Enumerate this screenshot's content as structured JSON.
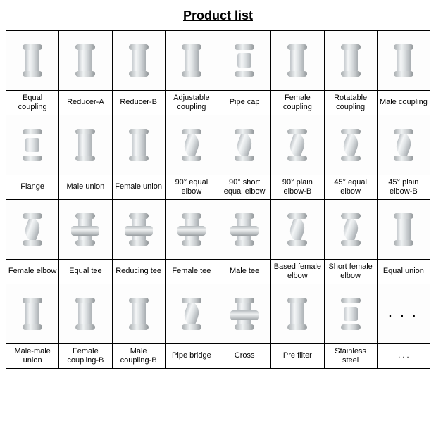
{
  "title": "Product list",
  "columns": 8,
  "rows": [
    [
      {
        "label": "Equal coupling",
        "shape": "coupling"
      },
      {
        "label": "Reducer-A",
        "shape": "coupling"
      },
      {
        "label": "Reducer-B",
        "shape": "coupling"
      },
      {
        "label": "Adjustable coupling",
        "shape": "coupling"
      },
      {
        "label": "Pipe cap",
        "shape": "flat"
      },
      {
        "label": "Female coupling",
        "shape": "coupling"
      },
      {
        "label": "Rotatable coupling",
        "shape": "coupling"
      },
      {
        "label": "Male coupling",
        "shape": "coupling"
      }
    ],
    [
      {
        "label": "Flange",
        "shape": "flat"
      },
      {
        "label": "Male union",
        "shape": "coupling"
      },
      {
        "label": "Female union",
        "shape": "coupling"
      },
      {
        "label": "90° equal elbow",
        "shape": "elbow"
      },
      {
        "label": "90° short equal elbow",
        "shape": "elbow"
      },
      {
        "label": "90° plain elbow-B",
        "shape": "elbow"
      },
      {
        "label": "45° equal elbow",
        "shape": "elbow"
      },
      {
        "label": "45° plain elbow-B",
        "shape": "elbow"
      }
    ],
    [
      {
        "label": "Female elbow",
        "shape": "elbow"
      },
      {
        "label": "Equal tee",
        "shape": "tee"
      },
      {
        "label": "Reducing tee",
        "shape": "tee"
      },
      {
        "label": "Female tee",
        "shape": "tee"
      },
      {
        "label": "Male tee",
        "shape": "tee"
      },
      {
        "label": "Based female elbow",
        "shape": "elbow"
      },
      {
        "label": "Short female elbow",
        "shape": "elbow"
      },
      {
        "label": "Equal union",
        "shape": "coupling"
      }
    ],
    [
      {
        "label": "Male-male union",
        "shape": "coupling"
      },
      {
        "label": "Female coupling-B",
        "shape": "coupling"
      },
      {
        "label": "Male coupling-B",
        "shape": "coupling"
      },
      {
        "label": "Pipe bridge",
        "shape": "elbow"
      },
      {
        "label": "Cross",
        "shape": "tee"
      },
      {
        "label": "Pre filter",
        "shape": "coupling"
      },
      {
        "label": "Stainless steel",
        "shape": "flat"
      },
      {
        "label": ". . .",
        "shape": "dots"
      }
    ]
  ]
}
